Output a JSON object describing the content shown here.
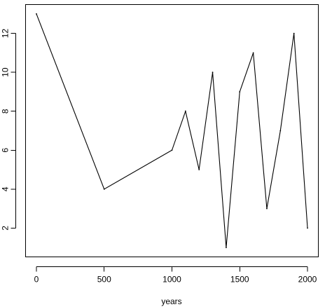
{
  "chart_data": {
    "type": "line",
    "title": "",
    "xlabel": "years",
    "ylabel": "",
    "xlim": [
      -80,
      2080
    ],
    "ylim": [
      0.52,
      13.48
    ],
    "x_ticks": [
      0,
      500,
      1000,
      1500,
      2000
    ],
    "y_ticks": [
      2,
      4,
      6,
      8,
      10,
      12
    ],
    "x_tick_labels": [
      "0",
      "500",
      "1000",
      "1500",
      "2000"
    ],
    "y_tick_labels": [
      "2",
      "4",
      "6",
      "8",
      "10",
      "12"
    ],
    "grid": false,
    "series": [
      {
        "color": "#000000",
        "x": [
          0,
          500,
          1000,
          1100,
          1200,
          1300,
          1400,
          1500,
          1600,
          1700,
          1800,
          1900,
          2000
        ],
        "y": [
          13,
          4,
          6,
          8,
          5,
          10,
          1,
          9,
          11,
          3,
          7,
          12,
          2
        ]
      }
    ]
  }
}
